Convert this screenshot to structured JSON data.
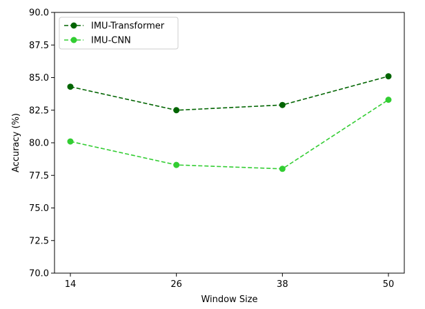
{
  "chart_data": {
    "type": "line",
    "title": "",
    "xlabel": "Window Size",
    "ylabel": "Accuracy (%)",
    "x": [
      14,
      26,
      38,
      50
    ],
    "x_tick_labels": [
      "14",
      "26",
      "38",
      "50"
    ],
    "ylim": [
      70.0,
      90.0
    ],
    "y_ticks": [
      70.0,
      72.5,
      75.0,
      77.5,
      80.0,
      82.5,
      85.0,
      87.5,
      90.0
    ],
    "y_tick_labels": [
      "70.0",
      "72.5",
      "75.0",
      "77.5",
      "80.0",
      "82.5",
      "85.0",
      "87.5",
      "90.0"
    ],
    "grid": false,
    "legend_position": "top-left",
    "series": [
      {
        "name": "IMU-Transformer",
        "values": [
          84.3,
          82.5,
          82.9,
          85.1
        ],
        "color": "#006400",
        "line_style": "dashed",
        "marker": "circle"
      },
      {
        "name": "IMU-CNN",
        "values": [
          80.1,
          78.3,
          78.0,
          83.3
        ],
        "color": "#32cd32",
        "line_style": "dashed",
        "marker": "circle"
      }
    ]
  }
}
